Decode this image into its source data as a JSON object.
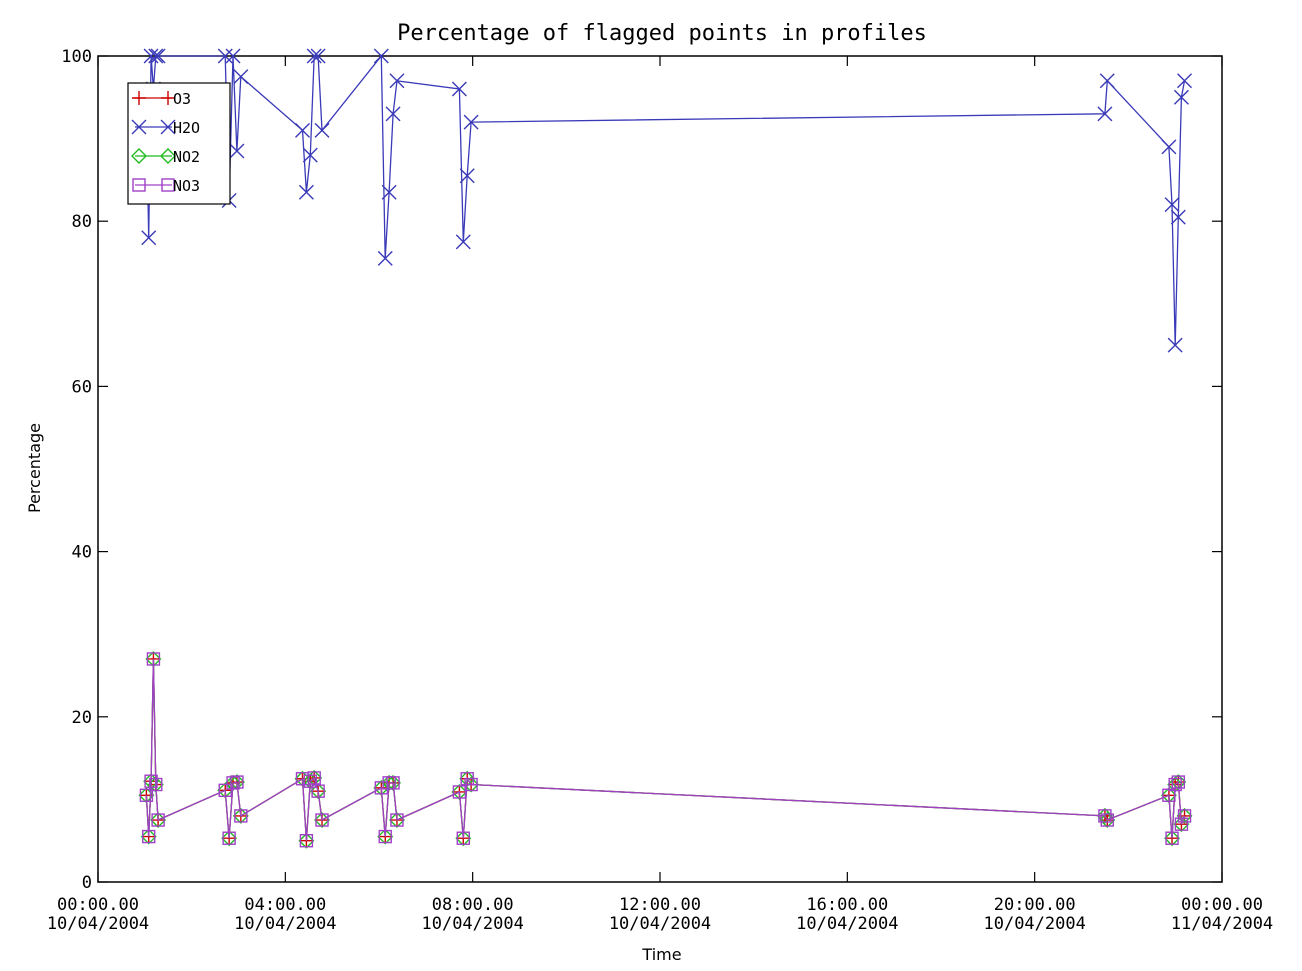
{
  "chart_data": {
    "type": "line",
    "title": "Percentage of flagged points in profiles",
    "xlabel": "Time",
    "ylabel": "Percentage",
    "xlim": [
      "10/04/2004 00:00:00",
      "11/04/2004 00:00:00"
    ],
    "ylim": [
      0,
      100
    ],
    "y_ticks": [
      0,
      20,
      40,
      60,
      80,
      100
    ],
    "x_ticks": [
      {
        "time": "00:00.00",
        "date": "10/04/2004"
      },
      {
        "time": "04:00.00",
        "date": "10/04/2004"
      },
      {
        "time": "08:00.00",
        "date": "10/04/2004"
      },
      {
        "time": "12:00.00",
        "date": "10/04/2004"
      },
      {
        "time": "16:00.00",
        "date": "10/04/2004"
      },
      {
        "time": "20:00.00",
        "date": "10/04/2004"
      },
      {
        "time": "00:00.00",
        "date": "11/04/2004"
      }
    ],
    "grid": false,
    "legend_position": "top-left",
    "series": [
      {
        "name": "O3",
        "color": "#cc0000",
        "marker": "plus",
        "x": [
          "01:02",
          "01:05",
          "01:08",
          "01:11",
          "01:14",
          "01:17",
          "02:43",
          "02:48",
          "02:53",
          "02:58",
          "03:03",
          "04:22",
          "04:27",
          "04:32",
          "04:37",
          "04:42",
          "04:47",
          "06:03",
          "06:08",
          "06:13",
          "06:18",
          "06:23",
          "07:43",
          "07:48",
          "07:53",
          "07:58",
          "21:30",
          "21:33",
          "22:52",
          "22:56",
          "23:00",
          "23:04",
          "23:08",
          "23:12"
        ],
        "y": [
          10.5,
          5.5,
          12.2,
          27.0,
          11.8,
          7.5,
          11.1,
          5.3,
          12.0,
          12.1,
          8.0,
          12.5,
          5.0,
          12.2,
          12.6,
          11.0,
          7.5,
          11.4,
          5.5,
          12.0,
          12.0,
          7.5,
          10.9,
          5.3,
          12.5,
          11.8,
          8.0,
          7.5,
          10.5,
          5.3,
          11.8,
          12.1,
          7.0,
          8.0
        ]
      },
      {
        "name": "H2O",
        "color": "#3a3ab8",
        "marker": "x",
        "x": [
          "01:02",
          "01:05",
          "01:08",
          "01:11",
          "01:14",
          "01:17",
          "02:43",
          "02:48",
          "02:53",
          "02:58",
          "03:03",
          "04:22",
          "04:27",
          "04:32",
          "04:37",
          "04:42",
          "04:47",
          "06:03",
          "06:08",
          "06:13",
          "06:18",
          "06:23",
          "07:43",
          "07:48",
          "07:53",
          "07:58",
          "21:30",
          "21:33",
          "22:52",
          "22:56",
          "23:00",
          "23:04",
          "23:08",
          "23:12"
        ],
        "y": [
          94.0,
          78.0,
          100.0,
          96.0,
          100.0,
          100.0,
          100.0,
          82.5,
          100.0,
          88.5,
          97.5,
          91.0,
          83.5,
          88.0,
          100.0,
          100.0,
          91.0,
          100.0,
          75.5,
          83.5,
          93.0,
          97.0,
          96.0,
          77.5,
          85.5,
          92.0,
          93.0,
          97.0,
          89.0,
          82.0,
          65.0,
          80.5,
          95.0,
          97.0
        ]
      },
      {
        "name": "NO2",
        "color": "#22bb22",
        "marker": "diamond",
        "x": [
          "01:02",
          "01:05",
          "01:08",
          "01:11",
          "01:14",
          "01:17",
          "02:43",
          "02:48",
          "02:53",
          "02:58",
          "03:03",
          "04:22",
          "04:27",
          "04:32",
          "04:37",
          "04:42",
          "04:47",
          "06:03",
          "06:08",
          "06:13",
          "06:18",
          "06:23",
          "07:43",
          "07:48",
          "07:53",
          "07:58",
          "21:30",
          "21:33",
          "22:52",
          "22:56",
          "23:00",
          "23:04",
          "23:08",
          "23:12"
        ],
        "y": [
          10.5,
          5.5,
          12.2,
          27.0,
          11.8,
          7.5,
          11.1,
          5.3,
          12.0,
          12.1,
          8.0,
          12.5,
          5.0,
          12.2,
          12.6,
          11.0,
          7.5,
          11.4,
          5.5,
          12.0,
          12.0,
          7.5,
          10.9,
          5.3,
          12.5,
          11.8,
          8.0,
          7.5,
          10.5,
          5.3,
          11.8,
          12.1,
          7.0,
          8.0
        ]
      },
      {
        "name": "NO3",
        "color": "#a040c8",
        "marker": "square",
        "x": [
          "01:02",
          "01:05",
          "01:08",
          "01:11",
          "01:14",
          "01:17",
          "02:43",
          "02:48",
          "02:53",
          "02:58",
          "03:03",
          "04:22",
          "04:27",
          "04:32",
          "04:37",
          "04:42",
          "04:47",
          "06:03",
          "06:08",
          "06:13",
          "06:18",
          "06:23",
          "07:43",
          "07:48",
          "07:53",
          "07:58",
          "21:30",
          "21:33",
          "22:52",
          "22:56",
          "23:00",
          "23:04",
          "23:08",
          "23:12"
        ],
        "y": [
          10.5,
          5.5,
          12.2,
          27.0,
          11.8,
          7.5,
          11.1,
          5.3,
          12.0,
          12.1,
          8.0,
          12.5,
          5.0,
          12.2,
          12.6,
          11.0,
          7.5,
          11.4,
          5.5,
          12.0,
          12.0,
          7.5,
          10.9,
          5.3,
          12.5,
          11.8,
          8.0,
          7.5,
          10.5,
          5.3,
          11.8,
          12.1,
          7.0,
          8.0
        ]
      }
    ]
  }
}
